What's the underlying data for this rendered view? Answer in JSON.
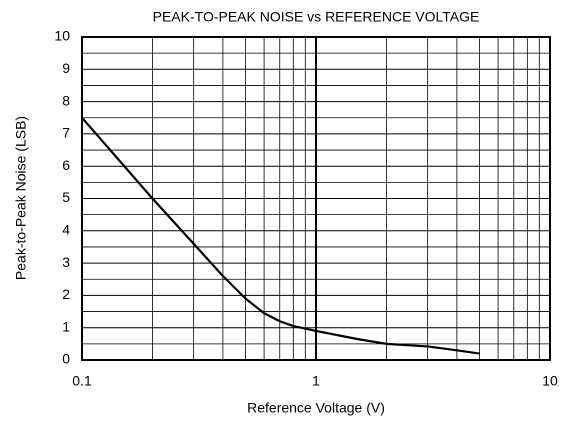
{
  "chart_data": {
    "type": "line",
    "title": "PEAK-TO-PEAK NOISE vs REFERENCE VOLTAGE",
    "x_label": "Reference Voltage (V)",
    "y_label": "Peak-to-Peak Noise (LSB)",
    "x": [
      0.1,
      0.2,
      0.3,
      0.4,
      0.5,
      0.6,
      0.7,
      0.8,
      1.0,
      1.5,
      2,
      3,
      4,
      5
    ],
    "series": [
      {
        "name": "Peak-to-Peak Noise",
        "color": "#000000",
        "values": [
          7.5,
          5.0,
          3.6,
          2.6,
          1.9,
          1.45,
          1.2,
          1.05,
          0.9,
          0.65,
          0.5,
          0.42,
          0.3,
          0.2
        ]
      }
    ],
    "xlim": [
      0.1,
      10
    ],
    "x_log": true,
    "xticks": [
      0.1,
      1,
      10
    ],
    "x_minor_ticks": [
      0.2,
      0.3,
      0.4,
      0.5,
      0.6,
      0.7,
      0.8,
      0.9,
      2,
      3,
      4,
      5,
      6,
      7,
      8,
      9
    ],
    "ylim": [
      0,
      10
    ],
    "yticks": [
      0,
      1,
      2,
      3,
      4,
      5,
      6,
      7,
      8,
      9,
      10
    ],
    "y_minor_ticks": [
      0.5,
      1.5,
      2.5,
      3.5,
      4.5,
      5.5,
      6.5,
      7.5,
      8.5,
      9.5
    ],
    "grid": true
  }
}
